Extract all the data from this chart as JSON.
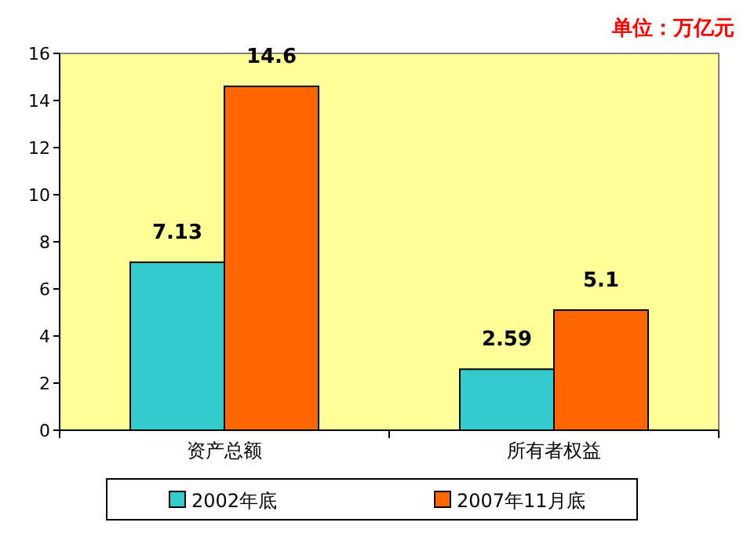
{
  "chart_data": {
    "type": "bar",
    "annotations": [
      "单位：万亿元"
    ],
    "categories": [
      "资产总额",
      "所有者权益"
    ],
    "series": [
      {
        "name": "2002年底",
        "color": "#33cccc",
        "values": [
          7.13,
          2.59
        ]
      },
      {
        "name": "2007年11月底",
        "color": "#ff6600",
        "values": [
          14.6,
          5.1
        ]
      }
    ],
    "ylim": [
      0,
      16
    ],
    "yticks": [
      0,
      2,
      4,
      6,
      8,
      10,
      12,
      14,
      16
    ],
    "data_labels": true,
    "legend": "bottom"
  }
}
